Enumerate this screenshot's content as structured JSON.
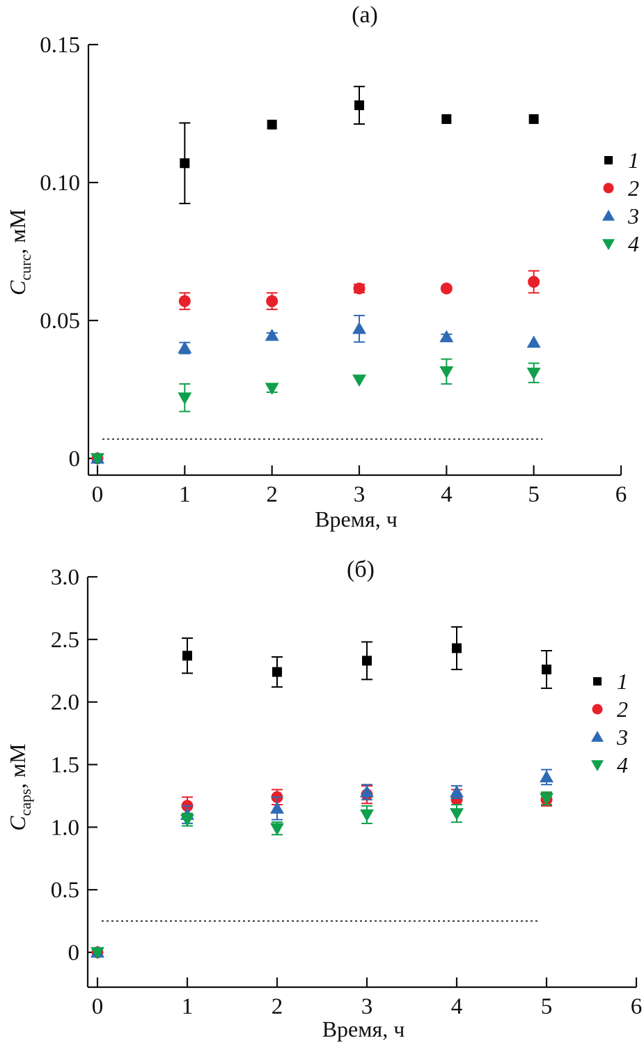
{
  "chart_data": [
    {
      "id": "a",
      "type": "scatter",
      "title": "(a)",
      "xlabel": "Время, ч",
      "ylabel_main": "C",
      "ylabel_sub": "curc",
      "ylabel_unit": ", мМ",
      "xlim": [
        0,
        6
      ],
      "ylim": [
        0,
        0.15
      ],
      "xticks": [
        0,
        1,
        2,
        3,
        4,
        5,
        6
      ],
      "xtick_labels": [
        "0",
        "1",
        "2",
        "3",
        "4",
        "5",
        "6"
      ],
      "yticks": [
        0,
        0.05,
        0.1,
        0.15
      ],
      "ytick_labels": [
        "0",
        "0.05",
        "0.10",
        "0.15"
      ],
      "grid": false,
      "legend_position": "right",
      "reference_line": {
        "y": 0.007,
        "x_end": 5.1,
        "style": "dotted"
      },
      "x": [
        0,
        1,
        2,
        3,
        4,
        5
      ],
      "series": [
        {
          "name": "1",
          "marker": "square",
          "color": "#000000",
          "values": [
            0,
            0.107,
            0.121,
            0.128,
            0.123,
            0.123
          ],
          "errors": [
            0,
            0.0146,
            0,
            0.0068,
            0,
            0
          ]
        },
        {
          "name": "2",
          "marker": "circle",
          "color": "#e8202a",
          "values": [
            0,
            0.057,
            0.057,
            0.0616,
            0.0616,
            0.064
          ],
          "errors": [
            0,
            0.003,
            0.003,
            0.0015,
            0,
            0.004
          ]
        },
        {
          "name": "3",
          "marker": "triangle-up",
          "color": "#2f6bb5",
          "values": [
            0,
            0.04,
            0.0445,
            0.047,
            0.044,
            0.042
          ],
          "errors": [
            0,
            0.002,
            0.001,
            0.0048,
            0.001,
            0
          ]
        },
        {
          "name": "4",
          "marker": "triangle-down",
          "color": "#0ea04b",
          "values": [
            0,
            0.022,
            0.0255,
            0.0285,
            0.0315,
            0.031
          ],
          "errors": [
            0,
            0.005,
            0.0015,
            0,
            0.0045,
            0.0035
          ]
        }
      ]
    },
    {
      "id": "b",
      "type": "scatter",
      "title": "(б)",
      "xlabel": "Время, ч",
      "ylabel_main": "C",
      "ylabel_sub": "caps",
      "ylabel_unit": ", мМ",
      "xlim": [
        0,
        6
      ],
      "ylim": [
        0,
        3.0
      ],
      "xticks": [
        0,
        1,
        2,
        3,
        4,
        5,
        6
      ],
      "xtick_labels": [
        "0",
        "1",
        "2",
        "3",
        "4",
        "5",
        "6"
      ],
      "yticks": [
        0,
        0.5,
        1.0,
        1.5,
        2.0,
        2.5,
        3.0
      ],
      "ytick_labels": [
        "0",
        "0.5",
        "1.0",
        "1.5",
        "2.0",
        "2.5",
        "3.0"
      ],
      "grid": false,
      "legend_position": "right",
      "reference_line": {
        "y": 0.25,
        "x_end": 4.9,
        "style": "dotted"
      },
      "x": [
        0,
        1,
        2,
        3,
        4,
        5
      ],
      "series": [
        {
          "name": "1",
          "marker": "square",
          "color": "#000000",
          "values": [
            0,
            2.37,
            2.24,
            2.33,
            2.43,
            2.26
          ],
          "errors": [
            0,
            0.14,
            0.12,
            0.15,
            0.17,
            0.15
          ]
        },
        {
          "name": "2",
          "marker": "circle",
          "color": "#e8202a",
          "values": [
            0,
            1.17,
            1.24,
            1.26,
            1.22,
            1.22
          ],
          "errors": [
            0,
            0.07,
            0.06,
            0.07,
            0.08,
            0.05
          ]
        },
        {
          "name": "3",
          "marker": "triangle-up",
          "color": "#2f6bb5",
          "values": [
            0,
            1.1,
            1.15,
            1.28,
            1.28,
            1.4
          ],
          "errors": [
            0,
            0.07,
            0.09,
            0.06,
            0.05,
            0.06
          ]
        },
        {
          "name": "4",
          "marker": "triangle-down",
          "color": "#0ea04b",
          "values": [
            0,
            1.06,
            0.99,
            1.1,
            1.11,
            1.23
          ],
          "errors": [
            0,
            0.05,
            0.05,
            0.07,
            0.07,
            0.05
          ]
        }
      ]
    }
  ]
}
